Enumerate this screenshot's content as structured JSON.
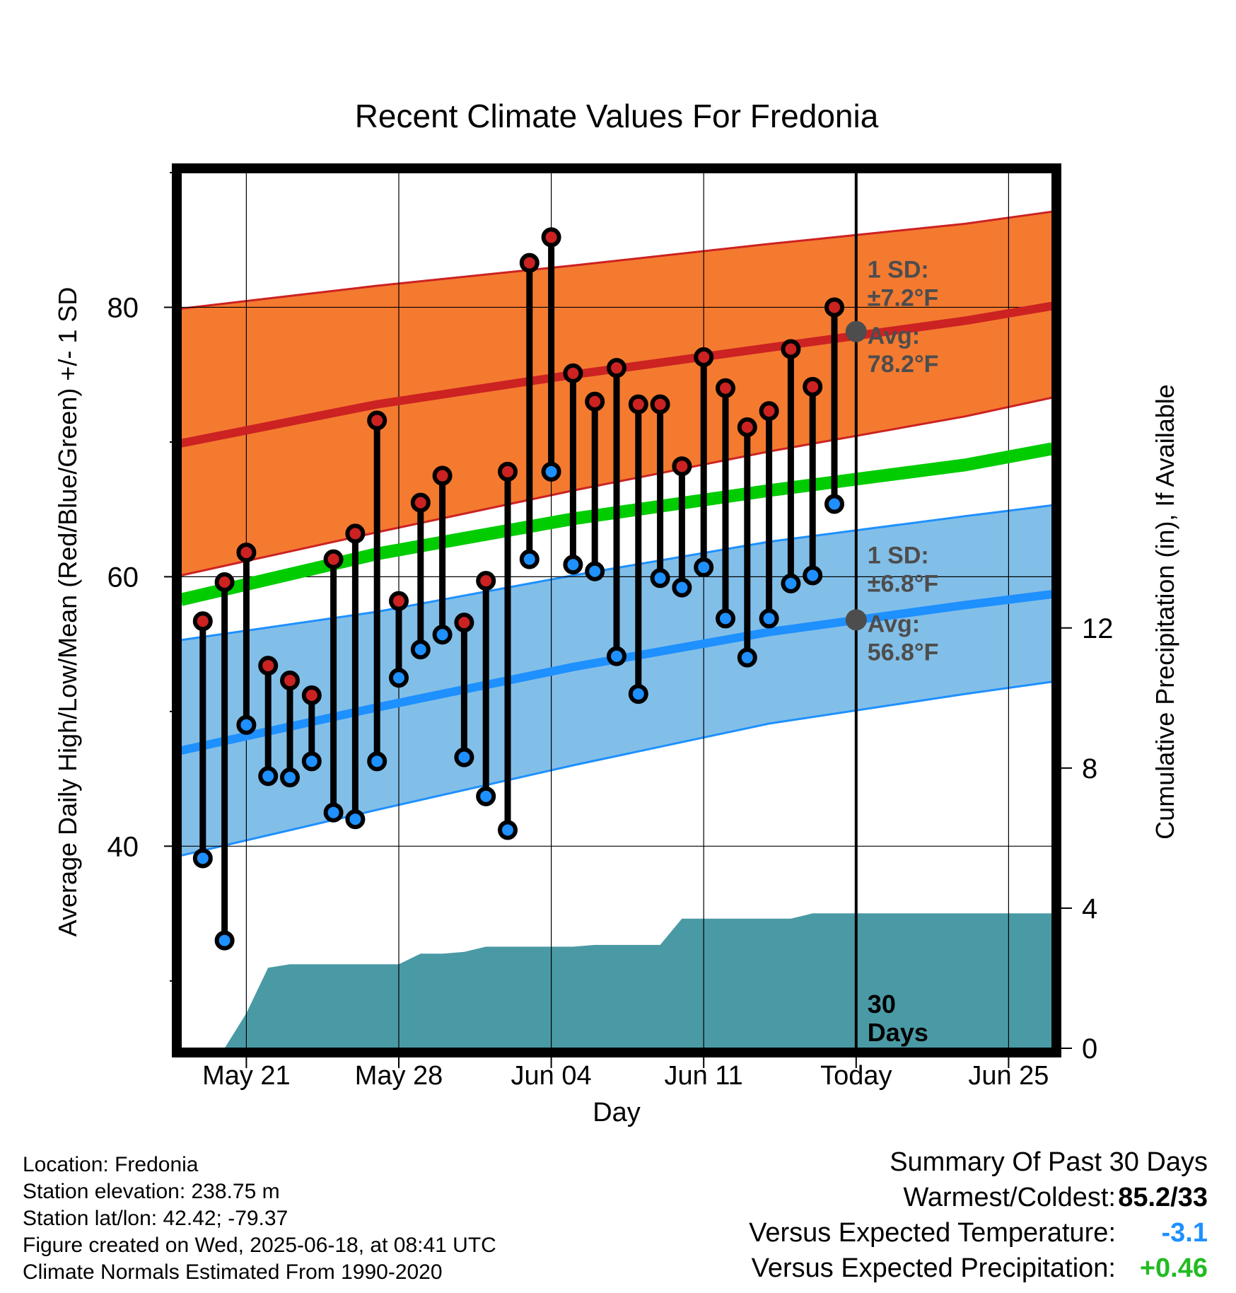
{
  "chart_data": {
    "type": "line",
    "title": "Recent Climate Values For Fredonia",
    "xlabel": "Day",
    "ylabel": "Average Daily High/Low/Mean (Red/Blue/Green) +/- 1 SD",
    "y2label": "Cumulative Precipitation (in), If Available",
    "x_tick_labels": [
      "May 21",
      "May 28",
      "Jun 04",
      "Jun 11",
      "Today",
      "Jun 25"
    ],
    "y_ticks": [
      "40",
      "60",
      "80"
    ],
    "y2_ticks": [
      "0",
      "4",
      "8",
      "12"
    ],
    "ylim": [
      25,
      90
    ],
    "y2lim": [
      0,
      25
    ],
    "xlim": [
      "May 18",
      "Jun 27"
    ],
    "today_label": "30 Days",
    "dates": [
      "May 19",
      "May 20",
      "May 21",
      "May 22",
      "May 23",
      "May 24",
      "May 25",
      "May 26",
      "May 27",
      "May 28",
      "May 29",
      "May 30",
      "May 31",
      "Jun 01",
      "Jun 02",
      "Jun 03",
      "Jun 04",
      "Jun 05",
      "Jun 06",
      "Jun 07",
      "Jun 08",
      "Jun 09",
      "Jun 10",
      "Jun 11",
      "Jun 12",
      "Jun 13",
      "Jun 14",
      "Jun 15",
      "Jun 16",
      "Jun 17"
    ],
    "series": [
      {
        "name": "High",
        "color": "#cc2222",
        "values": [
          56.7,
          59.6,
          61.8,
          53.4,
          52.3,
          51.2,
          61.3,
          63.2,
          71.6,
          58.2,
          65.5,
          67.5,
          56.6,
          59.7,
          67.8,
          83.3,
          85.2,
          75.1,
          73.0,
          75.5,
          72.8,
          72.8,
          68.2,
          76.3,
          74.0,
          71.1,
          72.3,
          76.9,
          74.1,
          80.0
        ]
      },
      {
        "name": "Low",
        "color": "#1e90ff",
        "values": [
          39.1,
          33.0,
          49.0,
          45.2,
          45.1,
          46.3,
          42.5,
          42.0,
          46.3,
          52.5,
          54.6,
          55.7,
          46.6,
          43.7,
          41.2,
          61.3,
          67.8,
          60.9,
          60.4,
          54.1,
          51.3,
          59.9,
          59.2,
          60.7,
          56.9,
          54.0,
          56.9,
          59.5,
          60.1,
          65.4
        ]
      }
    ],
    "normals": {
      "x": [
        "May 18",
        "May 27",
        "Jun 05",
        "Jun 14",
        "Jun 23",
        "Jun 27"
      ],
      "high_avg": [
        69.9,
        72.8,
        75.0,
        77.0,
        79.0,
        80.1
      ],
      "high_upper": [
        79.9,
        81.6,
        83.1,
        84.7,
        86.2,
        87.1
      ],
      "high_lower": [
        60.1,
        63.3,
        66.4,
        69.3,
        71.9,
        73.3
      ],
      "low_avg": [
        47.1,
        50.3,
        53.3,
        55.9,
        57.9,
        58.7
      ],
      "low_upper": [
        55.3,
        57.4,
        60.1,
        62.6,
        64.5,
        65.3
      ],
      "low_lower": [
        39.3,
        42.7,
        46.0,
        49.1,
        51.3,
        52.2
      ],
      "mean_avg": [
        58.3,
        61.7,
        64.3,
        66.4,
        68.3,
        69.5
      ]
    },
    "precip_cumulative": {
      "dates": [
        "May 20",
        "May 21",
        "May 22",
        "May 23",
        "May 24",
        "May 25",
        "May 26",
        "May 27",
        "May 28",
        "May 29",
        "May 30",
        "May 31",
        "Jun 01",
        "Jun 02",
        "Jun 03",
        "Jun 04",
        "Jun 05",
        "Jun 06",
        "Jun 07",
        "Jun 08",
        "Jun 09",
        "Jun 10",
        "Jun 11",
        "Jun 12",
        "Jun 13",
        "Jun 14",
        "Jun 15",
        "Jun 16",
        "Jun 17",
        "Jun 27"
      ],
      "values": [
        0,
        1.0,
        2.3,
        2.4,
        2.4,
        2.4,
        2.4,
        2.4,
        2.4,
        2.7,
        2.7,
        2.75,
        2.9,
        2.9,
        2.9,
        2.9,
        2.9,
        2.95,
        2.95,
        2.95,
        2.95,
        3.7,
        3.7,
        3.7,
        3.7,
        3.7,
        3.7,
        3.85,
        3.85,
        3.85
      ]
    },
    "annotations": {
      "high_sd": [
        "1 SD:",
        "±7.2°F"
      ],
      "high_avg": [
        "Avg:",
        "78.2°F"
      ],
      "low_sd": [
        "1 SD:",
        "±6.8°F"
      ],
      "low_avg": [
        "Avg:",
        "56.8°F"
      ]
    },
    "colors": {
      "high_band": "#f47a30",
      "high_line": "#cc2222",
      "low_band": "#82bfe8",
      "low_line": "#1e90ff",
      "mean_line": "#00cc00",
      "precip": "#4a9aa5",
      "annotation_text": "#4d4d4d"
    },
    "grid": true
  },
  "info": {
    "location": "Location: Fredonia",
    "elevation": "Station elevation: 238.75 m",
    "latlon": "Station lat/lon: 42.42; -79.37",
    "created": "Figure created on Wed, 2025-06-18, at 08:41 UTC",
    "normals": "Climate Normals Estimated From 1990-2020"
  },
  "summary": {
    "title": "Summary Of Past 30 Days",
    "warmest_label": "Warmest/Coldest:",
    "warmest_value": "85.2/33",
    "temp_label": "Versus Expected Temperature:",
    "temp_value": "-3.1",
    "temp_color": "#1e90ff",
    "precip_label": "Versus Expected Precipitation:",
    "precip_value": "+0.46",
    "precip_color": "#22bb22"
  }
}
